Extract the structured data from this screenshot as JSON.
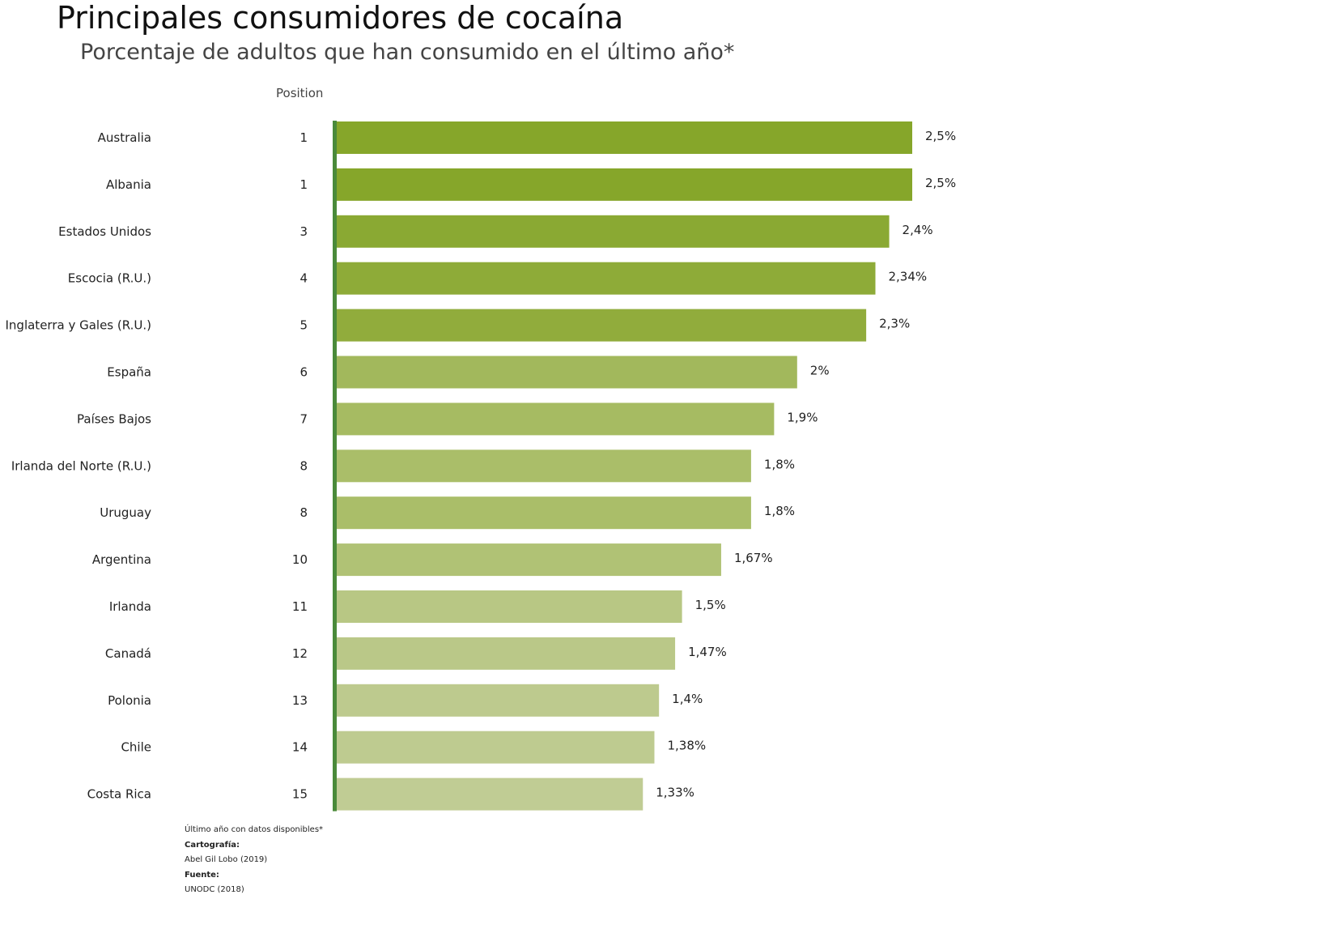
{
  "chart_data": {
    "type": "bar",
    "orientation": "horizontal",
    "title": "Principales consumidores de cocaína",
    "subtitle": "Porcentaje de adultos que han consumido en el último año*",
    "position_header": "Position",
    "categories": [
      "Australia",
      "Albania",
      "Estados Unidos",
      "Escocia (R.U.)",
      "Inglaterra y Gales (R.U.)",
      "España",
      "Países Bajos",
      "Irlanda del Norte (R.U.)",
      "Uruguay",
      "Argentina",
      "Irlanda",
      "Canadá",
      "Polonia",
      "Chile",
      "Costa Rica"
    ],
    "positions": [
      "1",
      "1",
      "3",
      "4",
      "5",
      "6",
      "7",
      "8",
      "8",
      "10",
      "11",
      "12",
      "13",
      "14",
      "15"
    ],
    "values": [
      2.5,
      2.5,
      2.4,
      2.34,
      2.3,
      2.0,
      1.9,
      1.8,
      1.8,
      1.67,
      1.5,
      1.47,
      1.4,
      1.38,
      1.33
    ],
    "value_labels": [
      "2,5%",
      "2,5%",
      "2,4%",
      "2,34%",
      "2,3%",
      "2%",
      "1,9%",
      "1,8%",
      "1,8%",
      "1,67%",
      "1,5%",
      "1,47%",
      "1,4%",
      "1,38%",
      "1,33%"
    ],
    "colors": [
      "#86a62a",
      "#86a62a",
      "#8aa933",
      "#8eab38",
      "#91ac3c",
      "#a2b85c",
      "#a6bb62",
      "#aabe69",
      "#aabe69",
      "#b0c275",
      "#b8c784",
      "#bac888",
      "#bdca8e",
      "#becb90",
      "#c0cc94"
    ],
    "axis_color": "#4a8a3a",
    "xlim": [
      0,
      2.5
    ],
    "grid": false
  },
  "notes": {
    "footnote": "Último año con datos disponibles*",
    "cartography_label": "Cartografía:",
    "cartography": "Abel Gil Lobo (2019)",
    "source_label": "Fuente:",
    "source": "UNODC (2018)"
  }
}
